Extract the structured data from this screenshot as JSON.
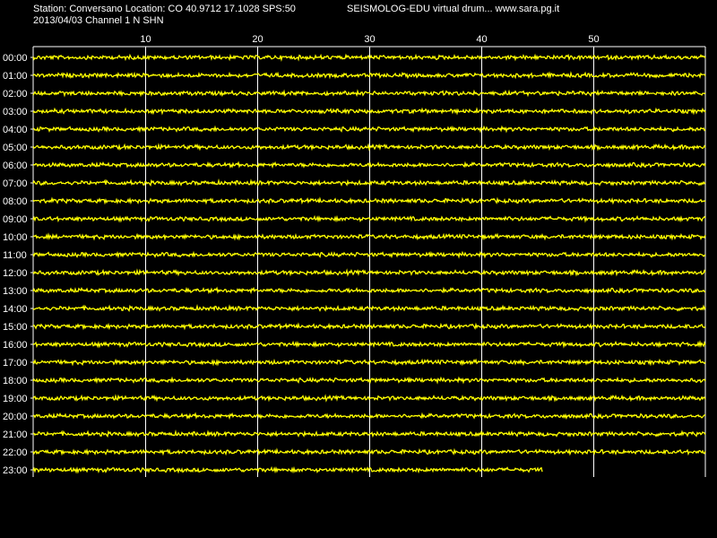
{
  "header": {
    "station_line": "Station: Conversano Location: CO 40.9712 17.1028 SPS:50",
    "date_line": "2013/04/03  Channel 1 N SHN",
    "software_line": "SEISMOLOG-EDU virtual drum... www.sara.pg.it"
  },
  "colors": {
    "background": "#000000",
    "trace": "#ffff00",
    "grid": "#ffffff",
    "text": "#ffffff"
  },
  "chart_data": {
    "type": "line",
    "title": "",
    "xlabel": "",
    "ylabel": "",
    "x_unit": "minutes",
    "xlim": [
      0,
      60
    ],
    "x_ticks": [
      10,
      20,
      30,
      40,
      50
    ],
    "grid": true,
    "rows": [
      "00:00",
      "01:00",
      "02:00",
      "03:00",
      "04:00",
      "05:00",
      "06:00",
      "07:00",
      "08:00",
      "09:00",
      "10:00",
      "11:00",
      "12:00",
      "13:00",
      "14:00",
      "15:00",
      "16:00",
      "17:00",
      "18:00",
      "19:00",
      "20:00",
      "21:00",
      "22:00",
      "23:00"
    ],
    "row_end_minutes": [
      60,
      60,
      60,
      60,
      60,
      60,
      60,
      60,
      60,
      60,
      60,
      60,
      60,
      60,
      60,
      60,
      60,
      60,
      60,
      60,
      60,
      60,
      60,
      45.5
    ]
  }
}
